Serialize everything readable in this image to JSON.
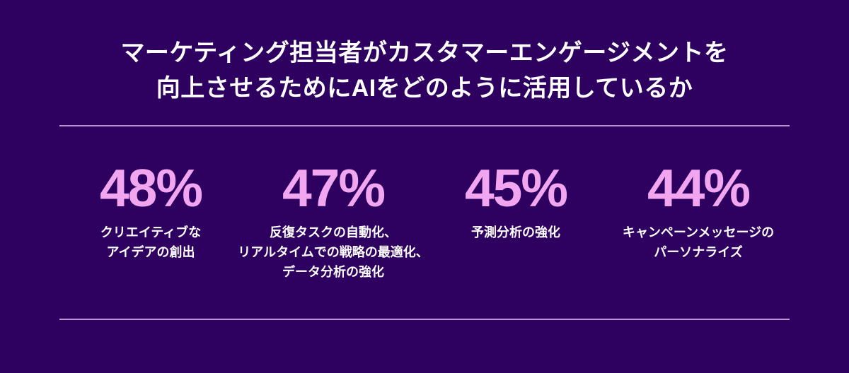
{
  "colors": {
    "background": "#2E0060",
    "number_pink": "#F2A6F0",
    "divider_lavender": "#BD93D6",
    "text_white": "#FFFFFF"
  },
  "title": {
    "line1": "マーケティング担当者がカスタマーエンゲージメントを",
    "line2": "向上させるためにAIをどのように活用しているか"
  },
  "stats": [
    {
      "value": "48%",
      "label_lines": [
        "クリエイティブな",
        "アイデアの創出"
      ]
    },
    {
      "value": "47%",
      "label_lines": [
        "反復タスクの自動化、",
        "リアルタイムでの戦略の最適化、",
        "データ分析の強化"
      ]
    },
    {
      "value": "45%",
      "label_lines": [
        "予測分析の強化"
      ]
    },
    {
      "value": "44%",
      "label_lines": [
        "キャンペーンメッセージのパーソナライズ",
        "パーソナライズ"
      ]
    }
  ],
  "chart_data": {
    "type": "bar",
    "title": "マーケティング担当者がカスタマーエンゲージメントを向上させるためにAIをどのように活用しているか",
    "categories": [
      "クリエイティブなアイデアの創出",
      "反復タスクの自動化、リアルタイムでの戦略の最適化、データ分析の強化",
      "予測分析の強化",
      "キャンペーンメッセージのパーソナライズ"
    ],
    "values": [
      48,
      47,
      45,
      44
    ],
    "unit": "%",
    "xlabel": "",
    "ylabel": "",
    "legend": "none",
    "grid": false
  }
}
